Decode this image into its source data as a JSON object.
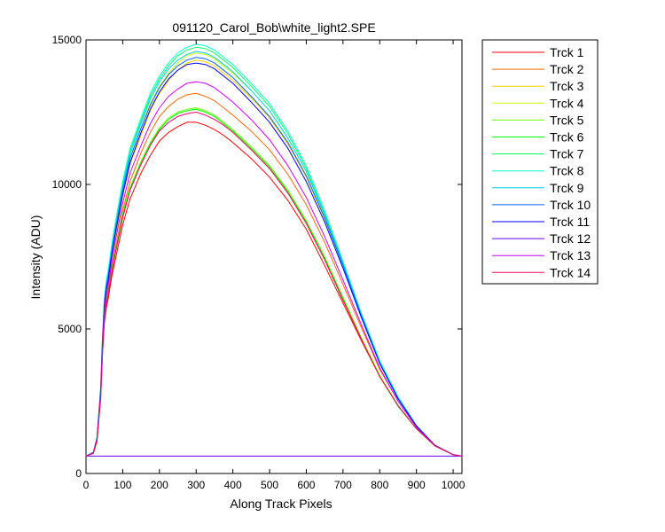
{
  "chart_data": {
    "type": "line",
    "title": "091120_Carol_Bob\\white_light2.SPE",
    "xlabel": "Along Track Pixels",
    "ylabel": "Intensity (ADU)",
    "xlim": [
      0,
      1024
    ],
    "ylim": [
      0,
      15000
    ],
    "x_ticks": [
      0,
      100,
      200,
      300,
      400,
      500,
      600,
      700,
      800,
      900,
      1000
    ],
    "y_ticks": [
      0,
      5000,
      10000,
      15000
    ],
    "grid": false,
    "legend_position": "outside-right",
    "x": [
      0,
      20,
      30,
      40,
      45,
      50,
      55,
      60,
      70,
      80,
      100,
      120,
      150,
      175,
      200,
      225,
      250,
      275,
      300,
      325,
      350,
      375,
      400,
      450,
      500,
      550,
      600,
      650,
      700,
      750,
      800,
      850,
      900,
      950,
      1000,
      1024
    ],
    "series": [
      {
        "name": "Trck 1",
        "color": "#ff0000",
        "values": [
          600,
          700,
          1100,
          2600,
          4100,
          5200,
          5700,
          6000,
          6800,
          7400,
          8600,
          9500,
          10400,
          11000,
          11500,
          11800,
          12000,
          12150,
          12150,
          12050,
          11900,
          11700,
          11450,
          10900,
          10250,
          9450,
          8450,
          7200,
          5900,
          4600,
          3350,
          2350,
          1550,
          950,
          650,
          600
        ]
      },
      {
        "name": "Trck 2",
        "color": "#ff6600",
        "values": [
          600,
          700,
          1150,
          2700,
          4300,
          5400,
          6000,
          6300,
          7100,
          7800,
          9100,
          10100,
          11100,
          11800,
          12350,
          12700,
          12950,
          13100,
          13150,
          13050,
          12900,
          12650,
          12400,
          11850,
          11200,
          10350,
          9300,
          8000,
          6550,
          5050,
          3600,
          2500,
          1600,
          960,
          650,
          600
        ]
      },
      {
        "name": "Trck 3",
        "color": "#ffcc00",
        "values": [
          600,
          720,
          1200,
          2850,
          4500,
          5700,
          6300,
          6600,
          7500,
          8200,
          9600,
          10700,
          11700,
          12550,
          13150,
          13600,
          13950,
          14200,
          14300,
          14250,
          14100,
          13850,
          13600,
          13000,
          12300,
          11400,
          10250,
          8800,
          7200,
          5500,
          3850,
          2600,
          1650,
          980,
          650,
          600
        ]
      },
      {
        "name": "Trck 4",
        "color": "#ccff00",
        "values": [
          600,
          720,
          1200,
          2900,
          4550,
          5800,
          6400,
          6700,
          7650,
          8400,
          9800,
          10900,
          11950,
          12800,
          13400,
          13850,
          14200,
          14450,
          14550,
          14500,
          14350,
          14100,
          13850,
          13250,
          12550,
          11600,
          10450,
          8950,
          7300,
          5550,
          3900,
          2650,
          1650,
          980,
          650,
          600
        ]
      },
      {
        "name": "Trck 5",
        "color": "#66ff00",
        "values": [
          600,
          700,
          1150,
          2700,
          4250,
          5350,
          5900,
          6200,
          7000,
          7700,
          9000,
          9900,
          10800,
          11450,
          11950,
          12300,
          12500,
          12600,
          12650,
          12550,
          12400,
          12150,
          11900,
          11300,
          10650,
          9800,
          8750,
          7500,
          6100,
          4700,
          3400,
          2350,
          1550,
          960,
          650,
          600
        ]
      },
      {
        "name": "Trck 6",
        "color": "#00ff00",
        "values": [
          600,
          700,
          1150,
          2700,
          4250,
          5350,
          5900,
          6200,
          7000,
          7700,
          8950,
          9850,
          10750,
          11400,
          11900,
          12250,
          12450,
          12550,
          12600,
          12500,
          12350,
          12100,
          11850,
          11250,
          10600,
          9750,
          8700,
          7450,
          6050,
          4650,
          3350,
          2320,
          1540,
          960,
          650,
          600
        ]
      },
      {
        "name": "Trck 7",
        "color": "#00ff66",
        "values": [
          600,
          730,
          1250,
          3000,
          4700,
          6000,
          6600,
          6900,
          7800,
          8600,
          10000,
          11150,
          12200,
          13050,
          13650,
          14100,
          14450,
          14650,
          14750,
          14700,
          14550,
          14300,
          14050,
          13400,
          12700,
          11750,
          10550,
          9000,
          7300,
          5500,
          3850,
          2600,
          1650,
          980,
          650,
          600
        ]
      },
      {
        "name": "Trck 8",
        "color": "#00ffcc",
        "values": [
          600,
          730,
          1250,
          3000,
          4750,
          6050,
          6650,
          7000,
          7900,
          8700,
          10100,
          11250,
          12300,
          13150,
          13750,
          14200,
          14550,
          14750,
          14850,
          14800,
          14650,
          14400,
          14150,
          13500,
          12800,
          11850,
          10650,
          9100,
          7350,
          5550,
          3900,
          2650,
          1660,
          980,
          650,
          600
        ]
      },
      {
        "name": "Trck 9",
        "color": "#00ccff",
        "values": [
          600,
          730,
          1250,
          2950,
          4650,
          5900,
          6500,
          6850,
          7750,
          8500,
          9900,
          11050,
          12100,
          12950,
          13550,
          14000,
          14300,
          14500,
          14600,
          14550,
          14400,
          14150,
          13900,
          13250,
          12550,
          11600,
          10450,
          8950,
          7250,
          5500,
          3850,
          2600,
          1650,
          980,
          650,
          600
        ]
      },
      {
        "name": "Trck 10",
        "color": "#0066ff",
        "values": [
          600,
          720,
          1200,
          2900,
          4600,
          5850,
          6450,
          6750,
          7650,
          8400,
          9800,
          10900,
          11950,
          12750,
          13350,
          13800,
          14100,
          14300,
          14400,
          14350,
          14200,
          13950,
          13700,
          13050,
          12350,
          11450,
          10300,
          8850,
          7200,
          5450,
          3800,
          2580,
          1640,
          980,
          650,
          600
        ]
      },
      {
        "name": "Trck 11",
        "color": "#0000ff",
        "values": [
          600,
          720,
          1200,
          2850,
          4500,
          5750,
          6350,
          6650,
          7550,
          8300,
          9650,
          10750,
          11800,
          12600,
          13200,
          13650,
          13950,
          14150,
          14200,
          14150,
          14000,
          13750,
          13500,
          12850,
          12150,
          11250,
          10100,
          8700,
          7100,
          5400,
          3800,
          2580,
          1640,
          980,
          650,
          600
        ]
      },
      {
        "name": "Trck 12",
        "color": "#6600ff",
        "values": [
          600,
          600,
          600,
          600,
          600,
          600,
          600,
          600,
          600,
          600,
          600,
          600,
          600,
          600,
          600,
          600,
          600,
          600,
          600,
          600,
          600,
          600,
          600,
          600,
          600,
          600,
          600,
          600,
          600,
          600,
          600,
          600,
          600,
          600,
          600,
          600
        ]
      },
      {
        "name": "Trck 13",
        "color": "#cc00ff",
        "values": [
          600,
          710,
          1180,
          2800,
          4400,
          5600,
          6150,
          6450,
          7300,
          8050,
          9350,
          10400,
          11350,
          12100,
          12650,
          13050,
          13300,
          13500,
          13550,
          13500,
          13350,
          13100,
          12850,
          12250,
          11550,
          10650,
          9550,
          8200,
          6700,
          5150,
          3650,
          2500,
          1600,
          970,
          650,
          600
        ]
      },
      {
        "name": "Trck 14",
        "color": "#ff0066",
        "values": [
          600,
          700,
          1150,
          2650,
          4200,
          5300,
          5850,
          6150,
          6950,
          7600,
          8850,
          9800,
          10700,
          11350,
          11850,
          12150,
          12350,
          12450,
          12500,
          12400,
          12250,
          12050,
          11800,
          11200,
          10550,
          9700,
          8650,
          7400,
          6000,
          4650,
          3350,
          2350,
          1550,
          960,
          650,
          600
        ]
      }
    ]
  }
}
